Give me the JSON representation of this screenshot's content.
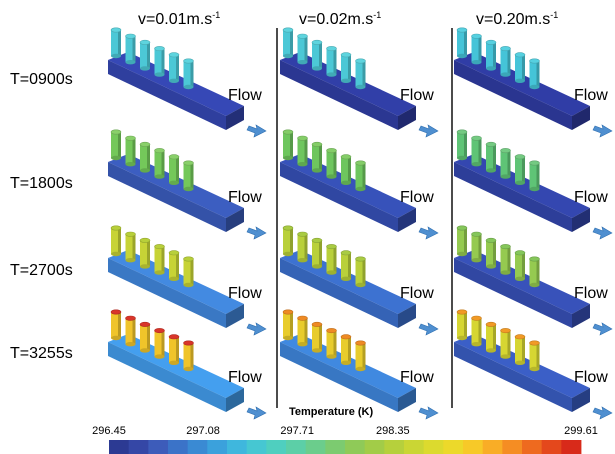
{
  "velocities": [
    {
      "label": "v=0.01m.s",
      "exp": "-1"
    },
    {
      "label": "v=0.02m.s",
      "exp": "-1"
    },
    {
      "label": "v=0.20m.s",
      "exp": "-1"
    }
  ],
  "times": [
    "T=0900s",
    "T=1800s",
    "T=2700s",
    "T=3255s"
  ],
  "flow_label": "Flow",
  "legend": {
    "title": "Temperature (K)",
    "ticks": [
      "296.45",
      "297.08",
      "297.71",
      "298.35",
      "299.61"
    ],
    "tick_values": [
      296.45,
      297.08,
      297.71,
      298.35,
      299.61
    ],
    "min": 296.45,
    "max": 299.61,
    "colors": [
      "#2c3a93",
      "#3547a6",
      "#3d5cba",
      "#3b73c8",
      "#3a8ad3",
      "#3ba1dc",
      "#3fb7dd",
      "#46c7d2",
      "#4fcfbf",
      "#5ccfa7",
      "#6bcd8c",
      "#7ccb70",
      "#8fca58",
      "#a2cc48",
      "#b6d03c",
      "#cad634",
      "#dcda2e",
      "#ecd92a",
      "#f7c928",
      "#f9ad26",
      "#f58d23",
      "#ee6a1f",
      "#e4481c",
      "#d82a1a"
    ]
  },
  "field_colors": {
    "0.01": [
      {
        "cyl": "#4cc8d6",
        "cap": "#5ed4de",
        "channel": "#2f3f9e"
      },
      {
        "cyl": "#74c85a",
        "cap": "#89d06a",
        "channel": "#3452a8"
      },
      {
        "cyl": "#c7d336",
        "cap": "#b8cf3a",
        "channel": "#3a78c4"
      },
      {
        "cyl": "#f0c42a",
        "cap": "#d9352a",
        "channel": "#3b8ad0"
      }
    ],
    "0.02": [
      {
        "cyl": "#4cc8d6",
        "cap": "#5ed4de",
        "channel": "#2b3792"
      },
      {
        "cyl": "#6ec65e",
        "cap": "#84cd68",
        "channel": "#3047a2"
      },
      {
        "cyl": "#b9d03a",
        "cap": "#a9cb42",
        "channel": "#3563b6"
      },
      {
        "cyl": "#e8cc2c",
        "cap": "#ee8a24",
        "channel": "#3877c3"
      }
    ],
    "0.20": [
      {
        "cyl": "#45c4d8",
        "cap": "#56d0e0",
        "channel": "#2a3590"
      },
      {
        "cyl": "#5fc476",
        "cap": "#74ca82",
        "channel": "#2d3e99"
      },
      {
        "cyl": "#95ca50",
        "cap": "#85c65a",
        "channel": "#3147a2"
      },
      {
        "cyl": "#d6d632",
        "cap": "#f19a26",
        "channel": "#3353ad"
      }
    ]
  }
}
